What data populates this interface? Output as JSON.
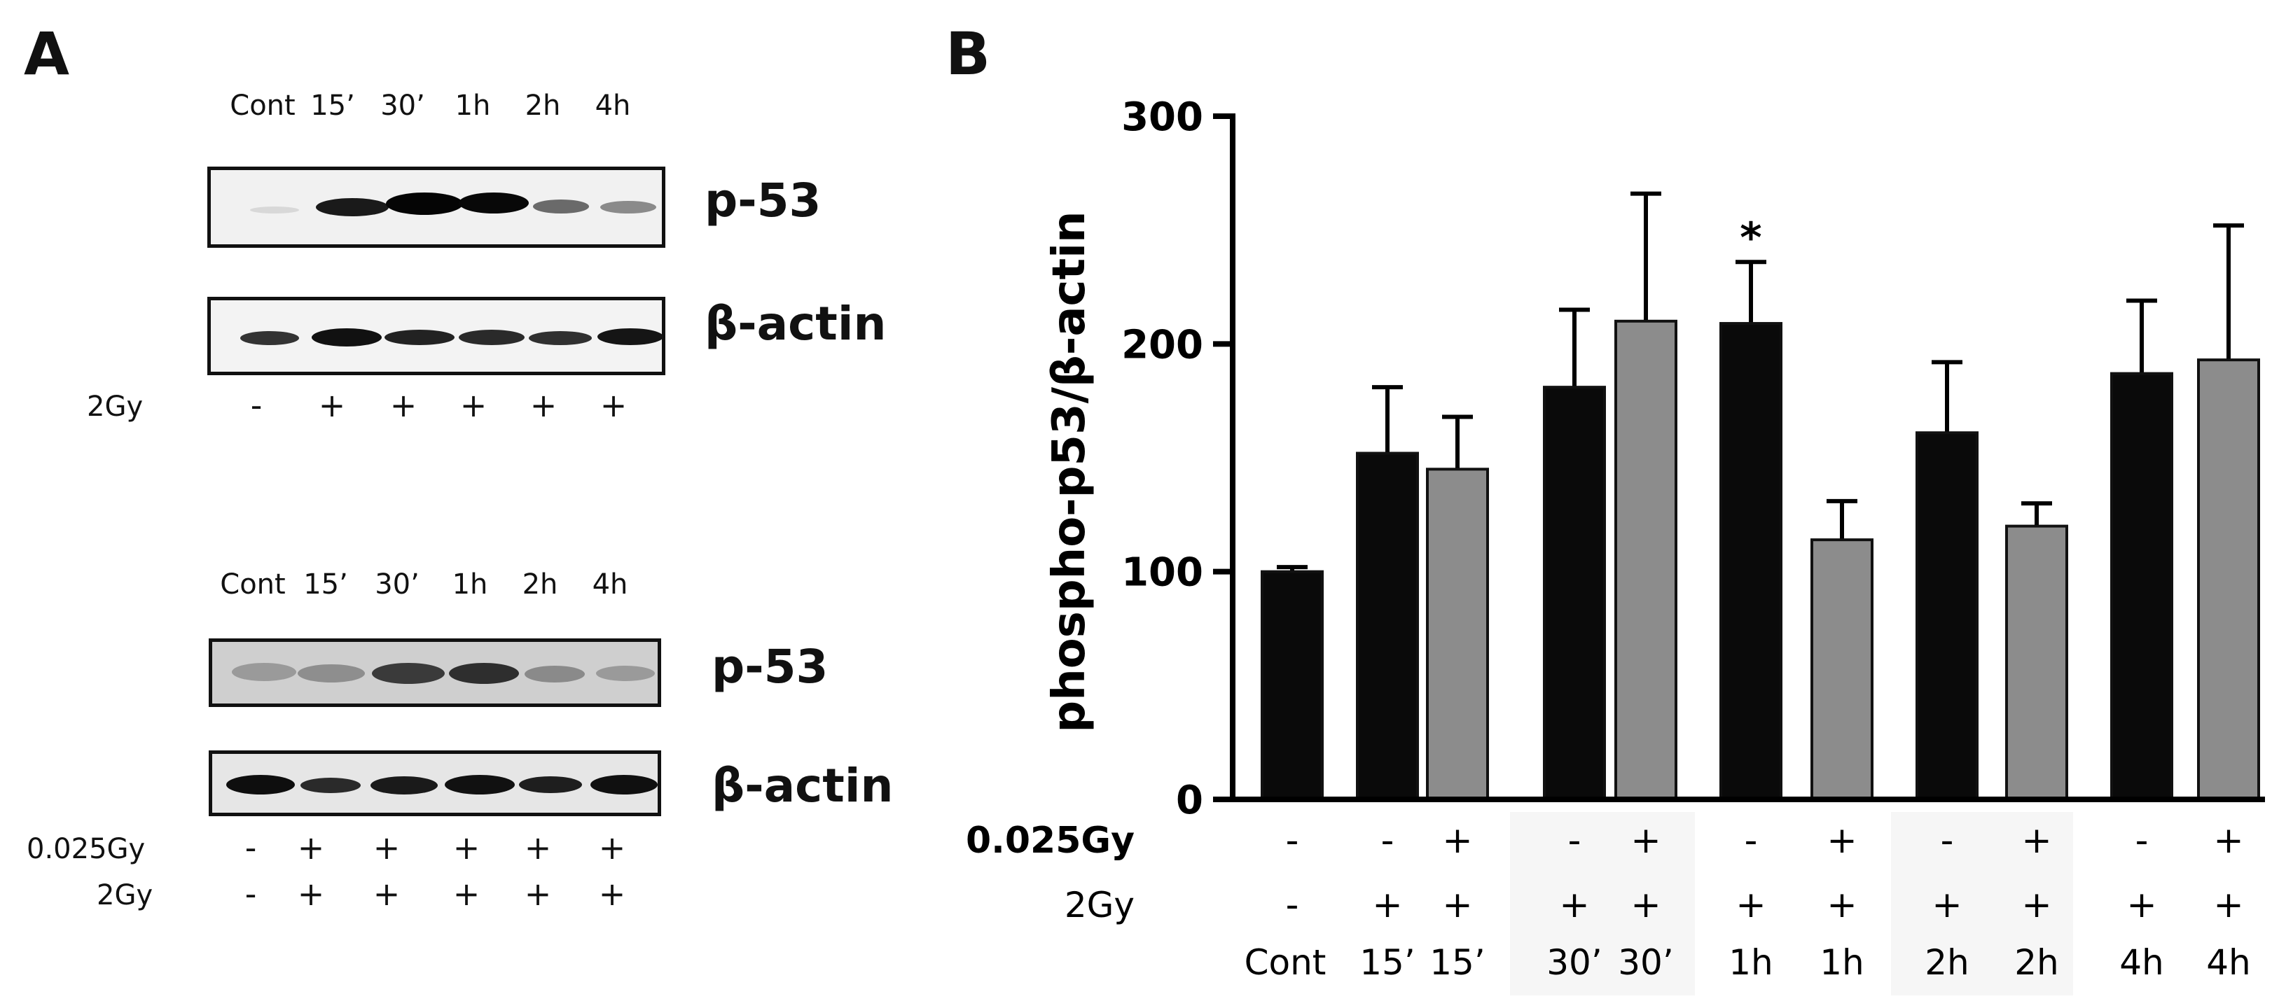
{
  "panel_a": {
    "letter": "A",
    "blots": [
      {
        "lanes": [
          "Cont",
          "15’",
          "30’",
          "1h",
          "2h",
          "4h"
        ],
        "proteins": [
          "p-53",
          "β-actin"
        ],
        "conditions": [
          {
            "label": "2Gy",
            "signs": [
              "-",
              "+",
              "+",
              "+",
              "+",
              "+"
            ]
          }
        ]
      },
      {
        "lanes": [
          "Cont",
          "15’",
          "30’",
          "1h",
          "2h",
          "4h"
        ],
        "proteins": [
          "p-53",
          "β-actin"
        ],
        "conditions": [
          {
            "label": "0.025Gy",
            "signs": [
              "-",
              "+",
              "+",
              "+",
              "+",
              "+"
            ]
          },
          {
            "label": "2Gy",
            "signs": [
              "-",
              "+",
              "+",
              "+",
              "+",
              "+"
            ]
          }
        ]
      }
    ]
  },
  "panel_b": {
    "letter": "B"
  },
  "colors": {
    "black_bar": "#0a0a0a",
    "grey_bar": "#8c8c8c",
    "axis": "#000000"
  },
  "chart_data": {
    "type": "bar",
    "ylabel": "phospho-p53/β-actin",
    "ylim": [
      0,
      300
    ],
    "yticks": [
      0,
      100,
      200,
      300
    ],
    "row_labels": [
      "0.025Gy",
      "2Gy"
    ],
    "significance_marker": "*",
    "bars": [
      {
        "label": "Cont",
        "low_dose": "-",
        "high_dose": "-",
        "value": 100,
        "error": 2,
        "color": "black",
        "sig": false
      },
      {
        "label": "15’",
        "low_dose": "-",
        "high_dose": "+",
        "value": 152,
        "error": 29,
        "color": "black",
        "sig": false
      },
      {
        "label": "15’",
        "low_dose": "+",
        "high_dose": "+",
        "value": 145,
        "error": 23,
        "color": "grey",
        "sig": false
      },
      {
        "label": "30’",
        "low_dose": "-",
        "high_dose": "+",
        "value": 181,
        "error": 34,
        "color": "black",
        "sig": false
      },
      {
        "label": "30’",
        "low_dose": "+",
        "high_dose": "+",
        "value": 210,
        "error": 56,
        "color": "grey",
        "sig": false
      },
      {
        "label": "1h",
        "low_dose": "-",
        "high_dose": "+",
        "value": 209,
        "error": 27,
        "color": "black",
        "sig": true
      },
      {
        "label": "1h",
        "low_dose": "+",
        "high_dose": "+",
        "value": 114,
        "error": 17,
        "color": "grey",
        "sig": false
      },
      {
        "label": "2h",
        "low_dose": "-",
        "high_dose": "+",
        "value": 161,
        "error": 31,
        "color": "black",
        "sig": false
      },
      {
        "label": "2h",
        "low_dose": "+",
        "high_dose": "+",
        "value": 120,
        "error": 10,
        "color": "grey",
        "sig": false
      },
      {
        "label": "4h",
        "low_dose": "-",
        "high_dose": "+",
        "value": 187,
        "error": 32,
        "color": "black",
        "sig": false
      },
      {
        "label": "4h",
        "low_dose": "+",
        "high_dose": "+",
        "value": 193,
        "error": 59,
        "color": "grey",
        "sig": false
      }
    ]
  }
}
